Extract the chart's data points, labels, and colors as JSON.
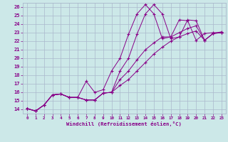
{
  "xlabel": "Windchill (Refroidissement éolien,°C)",
  "xlim": [
    -0.5,
    23.5
  ],
  "ylim": [
    13.5,
    26.5
  ],
  "yticks": [
    14,
    15,
    16,
    17,
    18,
    19,
    20,
    21,
    22,
    23,
    24,
    25,
    26
  ],
  "xticks": [
    0,
    1,
    2,
    3,
    4,
    5,
    6,
    7,
    8,
    9,
    10,
    11,
    12,
    13,
    14,
    15,
    16,
    17,
    18,
    19,
    20,
    21,
    22,
    23
  ],
  "background_color": "#cce8e8",
  "grid_color": "#aab8cc",
  "line_color": "#880088",
  "lines": [
    [
      14.1,
      13.8,
      14.5,
      15.7,
      15.8,
      15.4,
      15.4,
      15.1,
      15.1,
      15.9,
      16.0,
      18.5,
      20.0,
      22.8,
      25.2,
      26.3,
      25.2,
      22.3,
      22.5,
      24.5,
      24.4,
      22.1,
      22.9,
      23.0
    ],
    [
      14.1,
      13.8,
      14.5,
      15.7,
      15.8,
      15.4,
      15.4,
      17.3,
      16.0,
      16.3,
      18.5,
      20.0,
      22.8,
      25.2,
      26.3,
      25.2,
      22.3,
      22.5,
      24.5,
      24.4,
      22.1,
      22.9,
      23.0,
      23.0
    ],
    [
      14.1,
      13.8,
      14.5,
      15.7,
      15.8,
      15.4,
      15.4,
      15.1,
      15.1,
      15.9,
      16.0,
      17.5,
      18.5,
      19.8,
      21.0,
      21.8,
      22.5,
      22.5,
      23.0,
      23.5,
      23.8,
      22.1,
      22.9,
      23.1
    ],
    [
      14.1,
      13.8,
      14.5,
      15.7,
      15.8,
      15.4,
      15.4,
      15.1,
      15.1,
      15.9,
      16.0,
      16.8,
      17.5,
      18.5,
      19.5,
      20.5,
      21.3,
      22.0,
      22.5,
      22.9,
      23.2,
      22.1,
      22.9,
      23.0
    ]
  ]
}
